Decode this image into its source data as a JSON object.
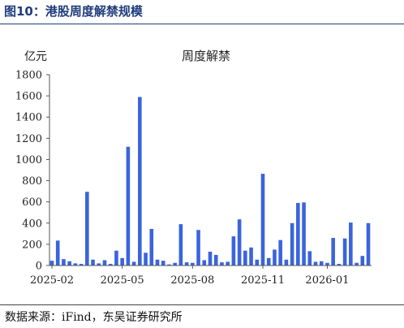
{
  "figure": {
    "title": "图10：港股周度解禁规模",
    "source": "数据来源：iFind，东吴证券研究所"
  },
  "chart_data": {
    "type": "bar",
    "title": "周度解禁",
    "ylabel": "亿元",
    "xlabel": "",
    "ylim": [
      0,
      1800
    ],
    "yticks": [
      0,
      200,
      400,
      600,
      800,
      1000,
      1200,
      1400,
      1600,
      1800
    ],
    "xtick_labels": [
      "2025-02",
      "2025-05",
      "2025-08",
      "2025-11",
      "2026-01"
    ],
    "xtick_indices": [
      0,
      12,
      24,
      36,
      47
    ],
    "bar_color": "#3b64dc",
    "grid": false,
    "values": [
      45,
      235,
      60,
      40,
      20,
      15,
      695,
      55,
      20,
      50,
      15,
      140,
      70,
      1120,
      35,
      1590,
      120,
      345,
      55,
      45,
      10,
      25,
      390,
      30,
      25,
      335,
      50,
      130,
      100,
      30,
      35,
      275,
      435,
      140,
      170,
      55,
      865,
      70,
      150,
      240,
      55,
      400,
      590,
      595,
      135,
      35,
      40,
      25,
      260,
      15,
      255,
      405,
      25,
      90,
      400
    ]
  }
}
